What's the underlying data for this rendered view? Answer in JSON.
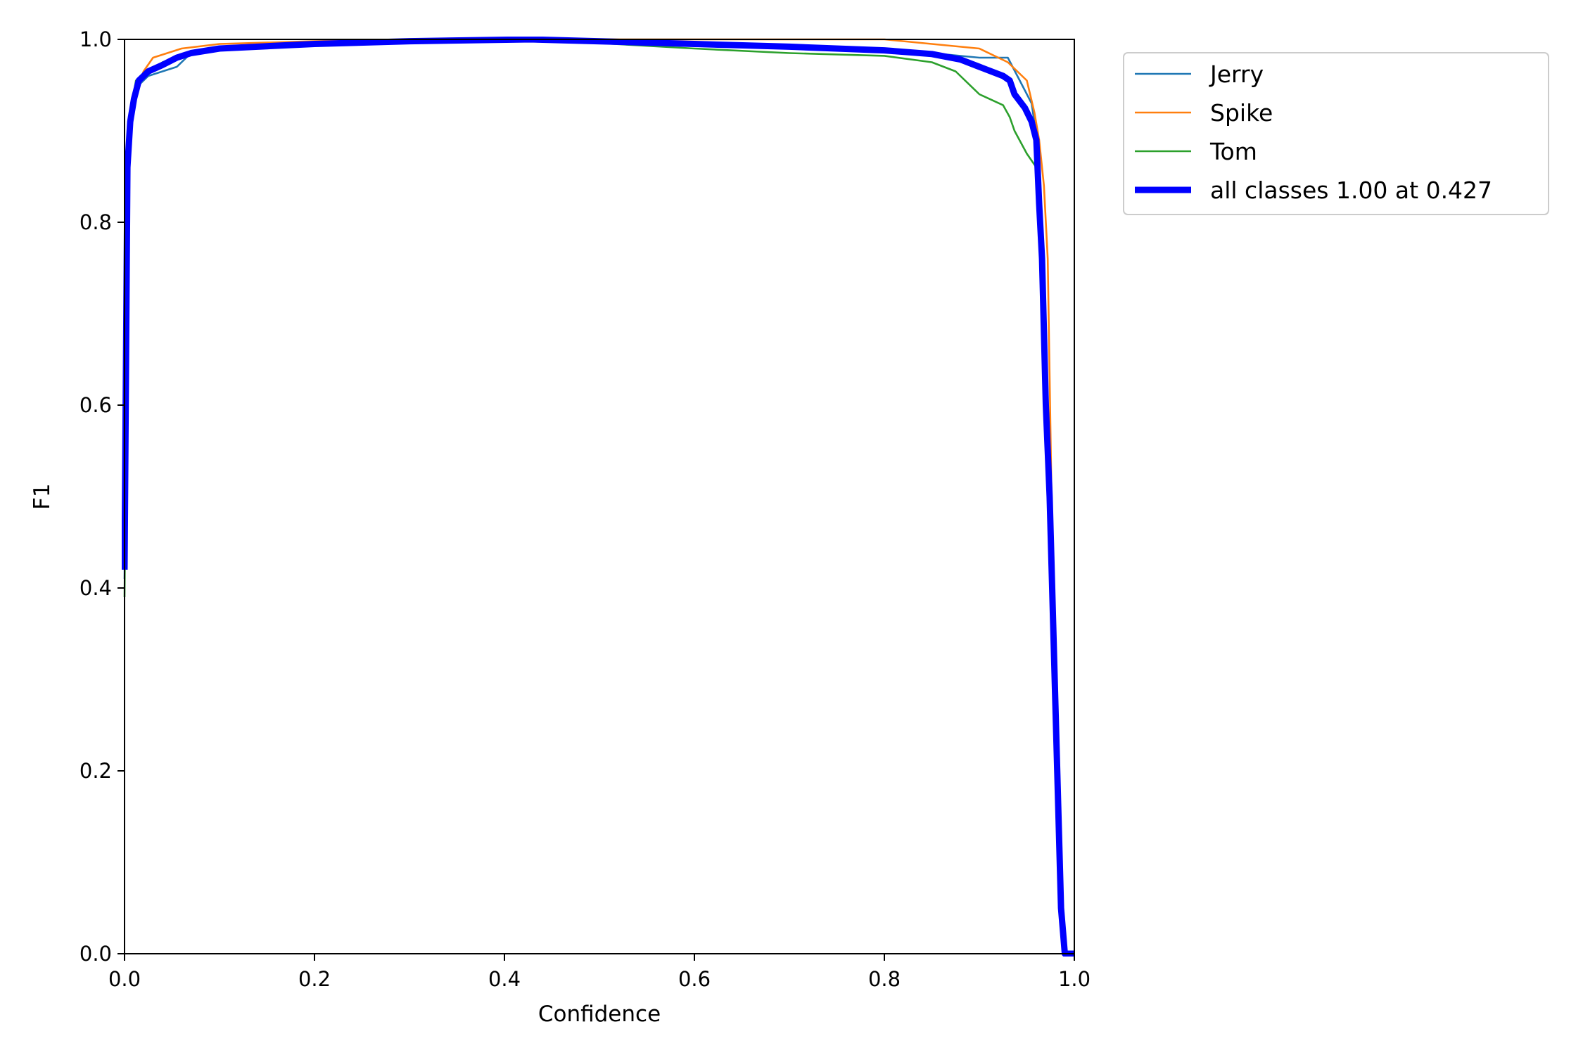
{
  "chart_data": {
    "type": "line",
    "xlabel": "Confidence",
    "ylabel": "F1",
    "xlim": [
      0,
      1
    ],
    "ylim": [
      0,
      1
    ],
    "xticks": [
      "0.0",
      "0.2",
      "0.4",
      "0.6",
      "0.8",
      "1.0"
    ],
    "yticks": [
      "0.0",
      "0.2",
      "0.4",
      "0.6",
      "0.8",
      "1.0"
    ],
    "grid": false,
    "legend_position": "outside-top-right",
    "series": [
      {
        "name": "Jerry",
        "color": "#1f77b4",
        "x": [
          0.0,
          0.004,
          0.008,
          0.015,
          0.025,
          0.04,
          0.055,
          0.07,
          0.1,
          0.2,
          0.3,
          0.43,
          0.6,
          0.75,
          0.85,
          0.9,
          0.93,
          0.945,
          0.955,
          0.962,
          0.968,
          0.972,
          0.976,
          0.98,
          0.984,
          0.988,
          1.0
        ],
        "y": [
          0.41,
          0.85,
          0.93,
          0.95,
          0.96,
          0.965,
          0.97,
          0.985,
          0.99,
          0.995,
          0.998,
          1.0,
          0.995,
          0.99,
          0.985,
          0.98,
          0.98,
          0.95,
          0.93,
          0.88,
          0.75,
          0.6,
          0.4,
          0.29,
          0.1,
          0.0,
          0.0
        ]
      },
      {
        "name": "Spike",
        "color": "#ff7f0e",
        "x": [
          0.0,
          0.004,
          0.008,
          0.015,
          0.02,
          0.03,
          0.045,
          0.06,
          0.1,
          0.2,
          0.3,
          0.43,
          0.6,
          0.7,
          0.8,
          0.85,
          0.9,
          0.93,
          0.95,
          0.958,
          0.963,
          0.968,
          0.972,
          0.976,
          0.98,
          0.984,
          0.988,
          1.0
        ],
        "y": [
          0.42,
          0.86,
          0.92,
          0.95,
          0.965,
          0.98,
          0.985,
          0.99,
          0.995,
          0.998,
          1.0,
          1.0,
          1.0,
          1.0,
          1.0,
          0.995,
          0.99,
          0.975,
          0.955,
          0.92,
          0.89,
          0.84,
          0.76,
          0.5,
          0.3,
          0.1,
          0.0,
          0.0
        ]
      },
      {
        "name": "Tom",
        "color": "#2ca02c",
        "x": [
          0.0,
          0.004,
          0.008,
          0.012,
          0.02,
          0.04,
          0.07,
          0.1,
          0.2,
          0.3,
          0.43,
          0.6,
          0.7,
          0.8,
          0.85,
          0.875,
          0.9,
          0.925,
          0.932,
          0.937,
          0.95,
          0.96,
          0.965,
          0.968,
          0.972,
          0.976,
          0.98,
          0.984,
          0.988,
          1.0
        ],
        "y": [
          0.39,
          0.86,
          0.93,
          0.955,
          0.96,
          0.975,
          0.985,
          0.99,
          0.995,
          0.998,
          1.0,
          0.99,
          0.985,
          0.982,
          0.975,
          0.965,
          0.94,
          0.928,
          0.915,
          0.9,
          0.875,
          0.86,
          0.76,
          0.6,
          0.5,
          0.35,
          0.2,
          0.05,
          0.0,
          0.0
        ]
      },
      {
        "name": "all classes 1.00 at 0.427",
        "color": "#0000ff",
        "thick": true,
        "x": [
          0.0,
          0.003,
          0.006,
          0.01,
          0.015,
          0.025,
          0.04,
          0.055,
          0.07,
          0.1,
          0.2,
          0.3,
          0.427,
          0.6,
          0.7,
          0.8,
          0.85,
          0.88,
          0.9,
          0.925,
          0.932,
          0.937,
          0.948,
          0.955,
          0.96,
          0.963,
          0.966,
          0.97,
          0.974,
          0.978,
          0.982,
          0.986,
          0.99,
          1.0
        ],
        "y": [
          0.42,
          0.86,
          0.91,
          0.935,
          0.955,
          0.965,
          0.972,
          0.98,
          0.985,
          0.99,
          0.995,
          0.998,
          1.0,
          0.995,
          0.992,
          0.988,
          0.984,
          0.978,
          0.97,
          0.96,
          0.955,
          0.94,
          0.925,
          0.91,
          0.89,
          0.82,
          0.76,
          0.6,
          0.5,
          0.35,
          0.2,
          0.05,
          0.0,
          0.0
        ]
      }
    ]
  }
}
